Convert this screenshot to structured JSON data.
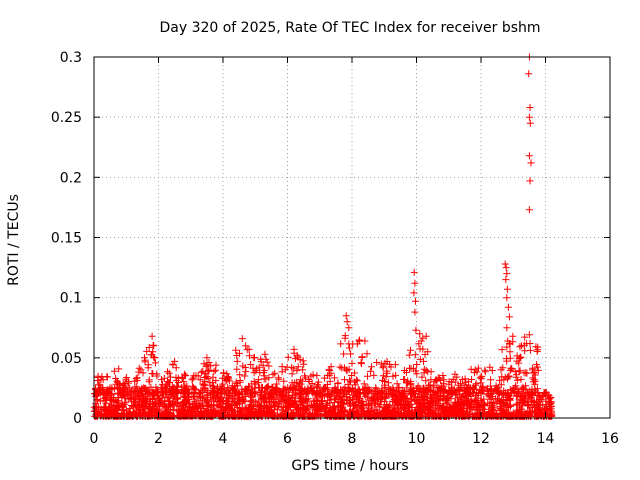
{
  "colors": {
    "series": "#ff0000",
    "axis": "#000000",
    "grid": "#a0a0a0"
  },
  "chart_data": {
    "type": "scatter",
    "title": "Day 320 of 2025, Rate Of TEC Index for receiver bshm",
    "xlabel": "GPS time / hours",
    "ylabel": "ROTI / TECUs",
    "xlim": [
      0,
      16
    ],
    "ylim": [
      0,
      0.3
    ],
    "grid": true,
    "x_ticks": [
      0,
      2,
      4,
      6,
      8,
      10,
      12,
      14,
      16
    ],
    "x_tick_labels": [
      "0",
      "2",
      "4",
      "6",
      "8",
      "10",
      "12",
      "14",
      "16"
    ],
    "y_ticks": [
      0,
      0.05,
      0.1,
      0.15,
      0.2,
      0.25,
      0.3
    ],
    "y_tick_labels": [
      "0",
      "0.05",
      "0.1",
      "0.15",
      "0.2",
      "0.25",
      "0.3"
    ],
    "marker": "+",
    "series": [
      {
        "name": "ROTI",
        "noise_band": {
          "x_range": [
            0,
            14.2
          ],
          "typical_max": 0.03,
          "note": "dense background of small ROTI values, mostly 0 to 0.03 TECU/min"
        },
        "envelope": [
          [
            0.0,
            0.02
          ],
          [
            0.2,
            0.045
          ],
          [
            0.4,
            0.035
          ],
          [
            0.8,
            0.045
          ],
          [
            1.2,
            0.03
          ],
          [
            1.8,
            0.068
          ],
          [
            2.0,
            0.03
          ],
          [
            2.5,
            0.047
          ],
          [
            3.0,
            0.032
          ],
          [
            3.5,
            0.05
          ],
          [
            4.0,
            0.04
          ],
          [
            4.6,
            0.066
          ],
          [
            5.0,
            0.05
          ],
          [
            5.3,
            0.053
          ],
          [
            5.6,
            0.04
          ],
          [
            6.2,
            0.057
          ],
          [
            6.6,
            0.045
          ],
          [
            7.0,
            0.035
          ],
          [
            7.5,
            0.048
          ],
          [
            7.8,
            0.085
          ],
          [
            8.3,
            0.065
          ],
          [
            8.8,
            0.05
          ],
          [
            9.3,
            0.045
          ],
          [
            9.7,
            0.055
          ],
          [
            10.2,
            0.068
          ],
          [
            10.6,
            0.04
          ],
          [
            11.0,
            0.035
          ],
          [
            11.6,
            0.04
          ],
          [
            12.2,
            0.045
          ],
          [
            12.6,
            0.04
          ],
          [
            12.8,
            0.128
          ],
          [
            13.1,
            0.04
          ],
          [
            13.5,
            0.3
          ],
          [
            13.8,
            0.03
          ],
          [
            14.2,
            0.02
          ]
        ],
        "outliers": [
          [
            9.93,
            0.121
          ],
          [
            9.95,
            0.112
          ],
          [
            9.92,
            0.104
          ],
          [
            9.97,
            0.097
          ],
          [
            9.95,
            0.088
          ],
          [
            9.98,
            0.073
          ],
          [
            10.1,
            0.07
          ],
          [
            10.15,
            0.064
          ],
          [
            12.75,
            0.128
          ],
          [
            12.78,
            0.125
          ],
          [
            12.8,
            0.12
          ],
          [
            12.77,
            0.115
          ],
          [
            12.82,
            0.107
          ],
          [
            12.8,
            0.1
          ],
          [
            12.85,
            0.092
          ],
          [
            12.88,
            0.084
          ],
          [
            12.8,
            0.075
          ],
          [
            12.83,
            0.064
          ],
          [
            12.9,
            0.055
          ],
          [
            13.5,
            0.3
          ],
          [
            13.48,
            0.286
          ],
          [
            13.52,
            0.258
          ],
          [
            13.5,
            0.25
          ],
          [
            13.53,
            0.245
          ],
          [
            13.5,
            0.218
          ],
          [
            13.55,
            0.212
          ],
          [
            13.52,
            0.197
          ],
          [
            13.5,
            0.173
          ],
          [
            13.6,
            0.04
          ],
          [
            13.65,
            0.038
          ],
          [
            1.8,
            0.068
          ],
          [
            1.85,
            0.06
          ],
          [
            1.82,
            0.055
          ],
          [
            1.88,
            0.05
          ],
          [
            2.5,
            0.047
          ],
          [
            3.5,
            0.05
          ],
          [
            4.6,
            0.066
          ],
          [
            4.7,
            0.06
          ],
          [
            5.3,
            0.053
          ],
          [
            6.2,
            0.057
          ],
          [
            6.3,
            0.052
          ],
          [
            7.82,
            0.085
          ],
          [
            7.85,
            0.08
          ],
          [
            7.9,
            0.075
          ],
          [
            8.4,
            0.064
          ],
          [
            10.3,
            0.068
          ]
        ]
      }
    ]
  }
}
